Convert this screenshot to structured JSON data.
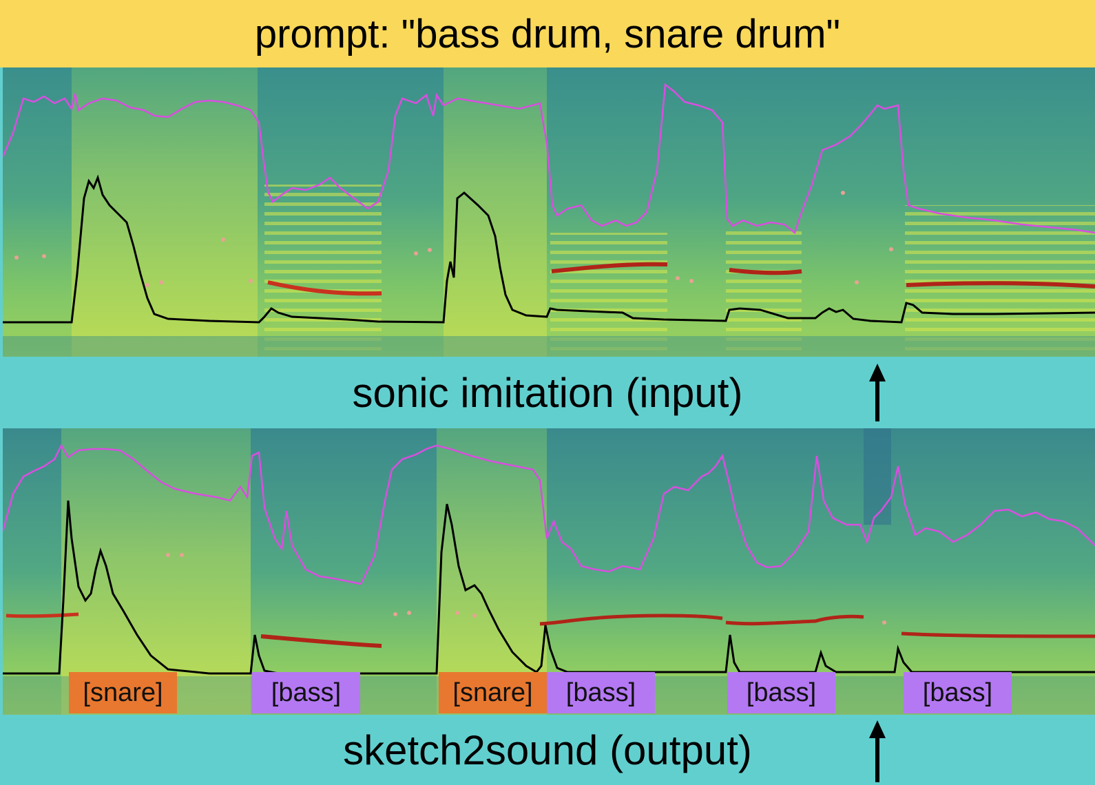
{
  "prompt_banner": {
    "text": "prompt: \"bass drum, snare drum\""
  },
  "input_panel": {
    "caption": "sonic imitation (input)"
  },
  "output_panel": {
    "caption": "sketch2sound (output)"
  },
  "labels": [
    "[snare]",
    "[bass]",
    "[snare]",
    "[bass]",
    "[bass]",
    "[bass]"
  ],
  "colors": {
    "banner": "#f9d85a",
    "band": "#62cfcf",
    "snare_tag": "#e8782f",
    "bass_tag": "#b478f3",
    "centroid_line": "#d94ee0",
    "loudness_line": "#000000",
    "pitch_track": "#c8321e"
  },
  "icons": {
    "arrow": "up-arrow-icon"
  }
}
